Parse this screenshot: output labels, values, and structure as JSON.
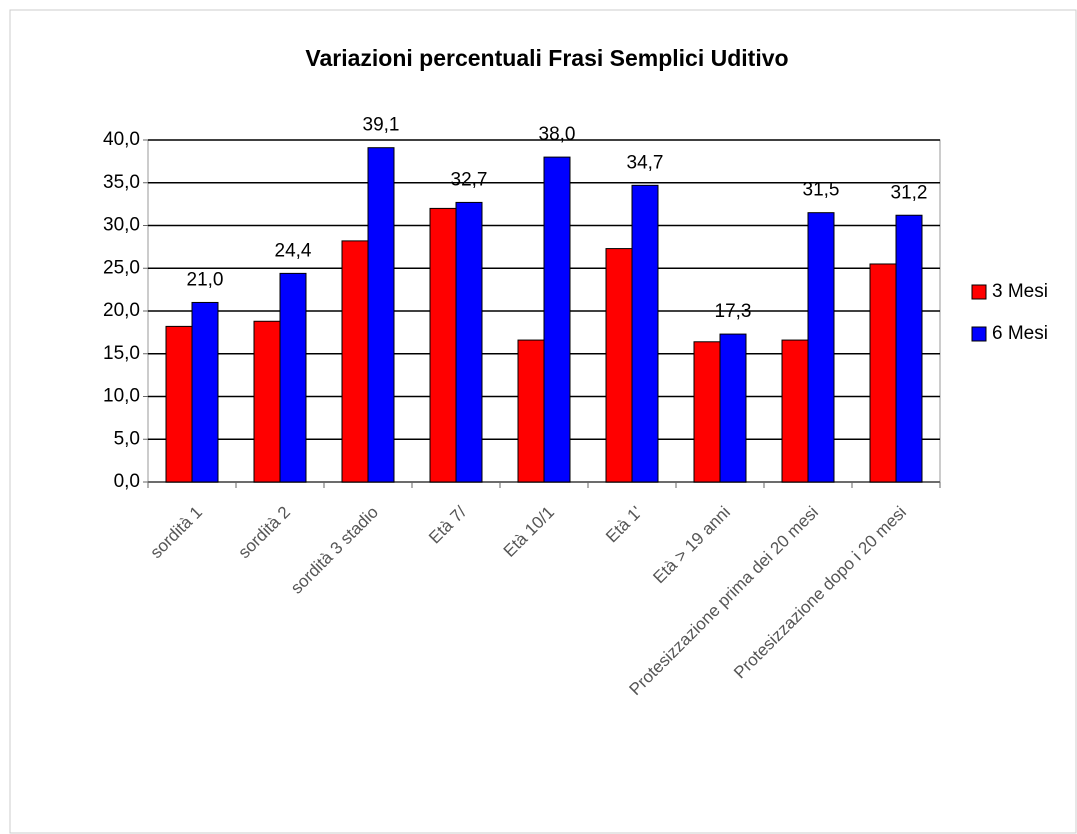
{
  "chart_data": {
    "type": "bar",
    "title": "Variazioni percentuali Frasi Semplici Uditivo",
    "categories": [
      "sordità 1",
      "sordità 2",
      "sordità 3 stadio",
      "Età 7/",
      "Età 10/1",
      "Età 1'",
      "Età > 19 anni",
      "Protesizzazione prima dei 20 mesi",
      "Protesizzazione dopo i 20 mesi"
    ],
    "series": [
      {
        "name": "3 Mesi",
        "color": "#ff0000",
        "values": [
          18.2,
          18.8,
          28.2,
          32.0,
          16.6,
          27.3,
          16.4,
          16.6,
          25.5
        ]
      },
      {
        "name": "6 Mesi",
        "color": "#0000ff",
        "values": [
          21.0,
          24.4,
          39.1,
          32.7,
          38.0,
          34.7,
          17.3,
          31.5,
          31.2
        ],
        "value_labels": [
          "21,0",
          "24,4",
          "39,1",
          "32,7",
          "38,0",
          "34,7",
          "17,3",
          "31,5",
          "31,2"
        ]
      }
    ],
    "ylim": [
      0,
      40
    ],
    "yticks": [
      {
        "value": 0,
        "label": "0,0"
      },
      {
        "value": 5,
        "label": "5,0"
      },
      {
        "value": 10,
        "label": "10,0"
      },
      {
        "value": 15,
        "label": "15,0"
      },
      {
        "value": 20,
        "label": "20,0"
      },
      {
        "value": 25,
        "label": "25,0"
      },
      {
        "value": 30,
        "label": "30,0"
      },
      {
        "value": 35,
        "label": "35,0"
      },
      {
        "value": 40,
        "label": "40,0"
      }
    ],
    "grid": true,
    "legend": "right"
  }
}
